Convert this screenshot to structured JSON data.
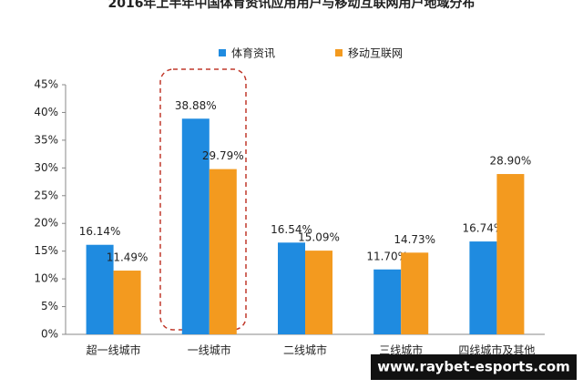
{
  "chart_data": {
    "type": "bar",
    "title": "2016年上半年中国体育资讯应用用户与移动互联网用户地域分布",
    "categories": [
      "超一线城市",
      "一线城市",
      "二线城市",
      "三线城市",
      "四线城市及其他"
    ],
    "series": [
      {
        "name": "体育资讯",
        "color": "#1f8be0",
        "values": [
          16.14,
          38.88,
          16.54,
          11.7,
          16.74
        ],
        "value_labels": [
          "16.14%",
          "38.88%",
          "16.54%",
          "11.70%",
          "16.74%"
        ]
      },
      {
        "name": "移动互联网",
        "color": "#f39a1f",
        "values": [
          11.49,
          29.79,
          15.09,
          14.73,
          28.9
        ],
        "value_labels": [
          "11.49%",
          "29.79%",
          "15.09%",
          "14.73%",
          "28.90%"
        ]
      }
    ],
    "ylim": [
      0,
      45
    ],
    "yticks": [
      {
        "value": 0,
        "label": "0%"
      },
      {
        "value": 5,
        "label": "5%"
      },
      {
        "value": 10,
        "label": "10%"
      },
      {
        "value": 15,
        "label": "15%"
      },
      {
        "value": 20,
        "label": "20%"
      },
      {
        "value": 25,
        "label": "25%"
      },
      {
        "value": 30,
        "label": "30%"
      },
      {
        "value": 35,
        "label": "35%"
      },
      {
        "value": 40,
        "label": "40%"
      },
      {
        "value": 45,
        "label": "45%"
      }
    ],
    "watermark": "www.raybet-esports.com"
  }
}
